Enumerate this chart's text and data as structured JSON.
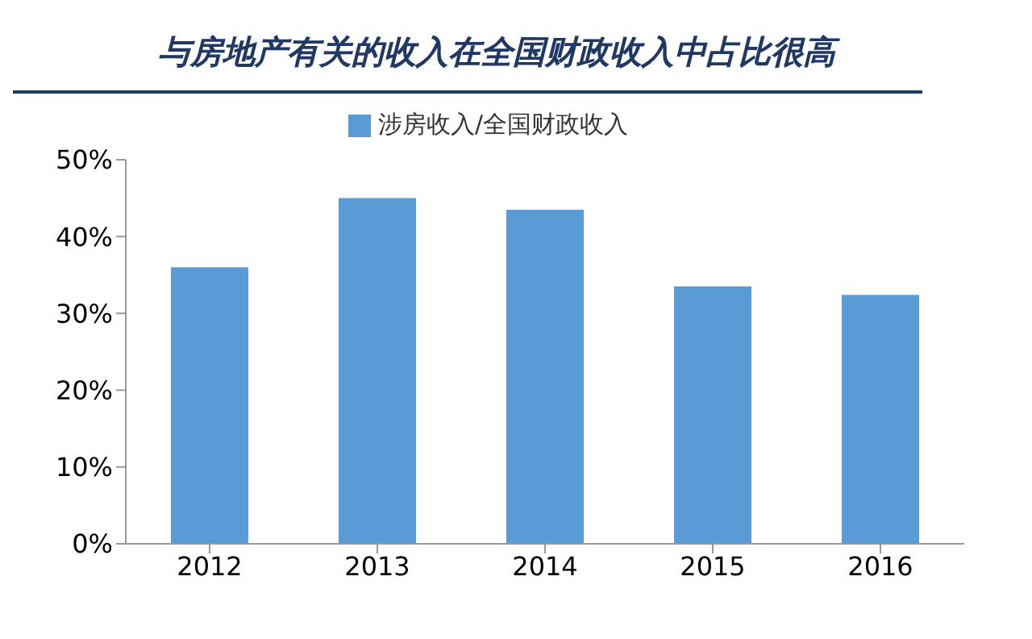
{
  "chart_data": {
    "type": "bar",
    "title": "与房地产有关的收入在全国财政收入中占比很高",
    "categories": [
      "2012",
      "2013",
      "2014",
      "2015",
      "2016"
    ],
    "series": [
      {
        "name": "涉房收入/全国财政收入",
        "color": "#5b9bd5",
        "values": [
          36,
          45,
          43.5,
          33.5,
          32.4
        ]
      }
    ],
    "ylim": [
      0,
      50
    ],
    "yticks": [
      {
        "value": 0,
        "label": "0%"
      },
      {
        "value": 10,
        "label": "10%"
      },
      {
        "value": 20,
        "label": "20%"
      },
      {
        "value": 30,
        "label": "30%"
      },
      {
        "value": 40,
        "label": "40%"
      },
      {
        "value": 50,
        "label": "50%"
      }
    ],
    "grid": false,
    "legend": "top"
  }
}
